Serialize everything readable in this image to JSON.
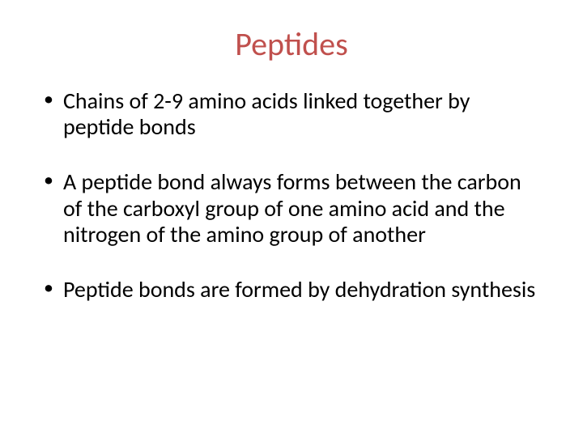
{
  "slide": {
    "title": "Peptides",
    "title_color": "#c0504d",
    "title_fontsize": 40,
    "body_fontsize": 28,
    "body_color": "#000000",
    "background_color": "#ffffff",
    "bullets": [
      {
        "text": "Chains of 2-9 amino acids linked together by peptide bonds"
      },
      {
        "text": "A peptide bond always forms between the carbon of the carboxyl group of one amino acid and the nitrogen of the amino group of another"
      },
      {
        "text": "Peptide bonds are formed by dehydration synthesis"
      }
    ]
  }
}
